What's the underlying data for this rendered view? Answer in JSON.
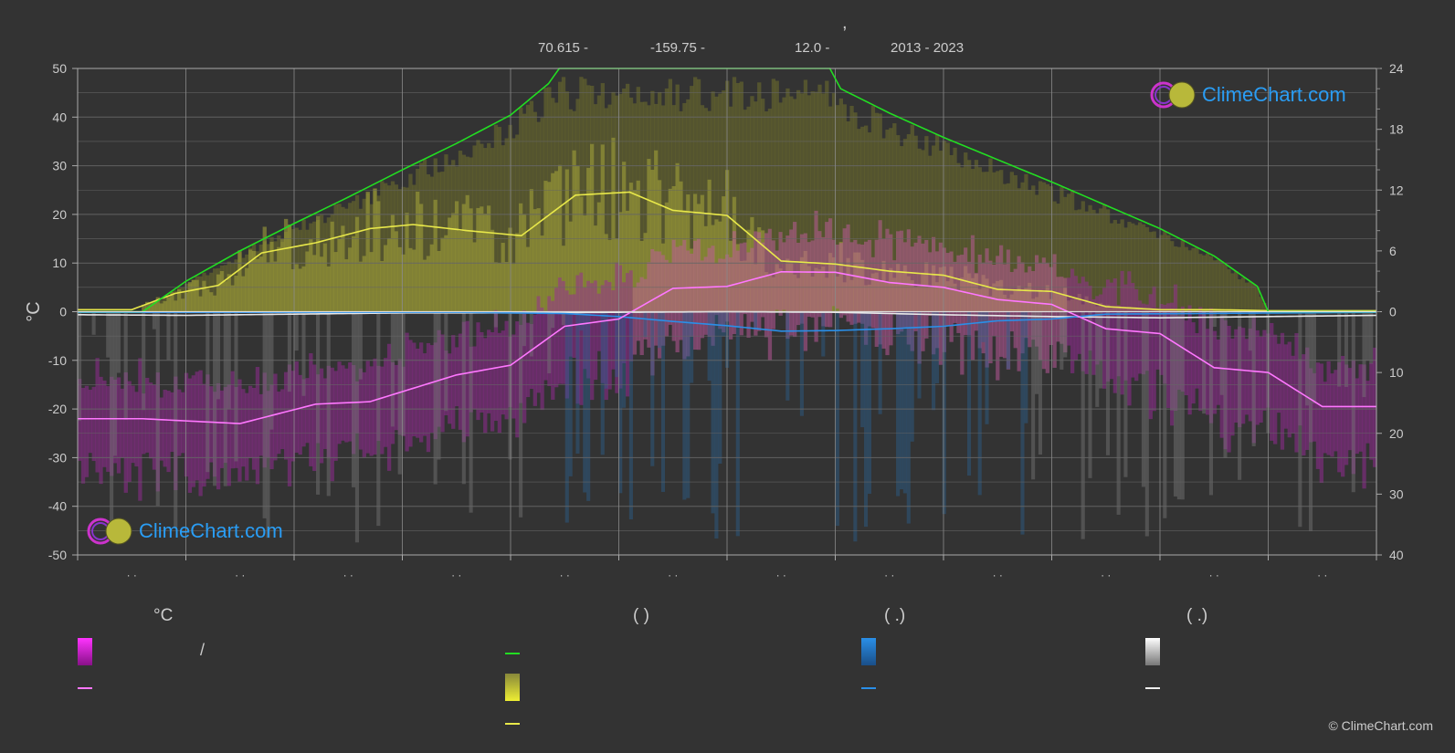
{
  "header": {
    "title_comma": ",",
    "lat": "70.615 -",
    "lon": "-159.75 -",
    "elev": "12.0 -",
    "years": "2013 - 2023"
  },
  "logo_text": "ClimeChart.com",
  "copyright": "© ClimeChart.com",
  "legend": {
    "temp_header": "°C",
    "sun_header": "(          )",
    "rain_header": "(   .)",
    "snow_header": "(   .)",
    "temp_slash": "/"
  },
  "colors": {
    "background": "#333333",
    "daylight": "#22dd22",
    "sunshine": "#e8e84a",
    "temp_mean": "#ff77ff",
    "temp_band": "#e030e0",
    "rain": "#2a8fe8",
    "snow": "#e8e8e8",
    "grid": "#666666",
    "axis_text": "#cccccc"
  },
  "chart_data": {
    "type": "line",
    "left_axis": {
      "label": "°C",
      "min": -50,
      "max": 50,
      "ticks": [
        50,
        40,
        30,
        20,
        10,
        0,
        -10,
        -20,
        -30,
        -40,
        -50
      ]
    },
    "right_axis_top": {
      "min": 0,
      "max": 24,
      "ticks": [
        24,
        18,
        12,
        6,
        0
      ]
    },
    "right_axis_bottom": {
      "min": 0,
      "max": 40,
      "ticks": [
        0,
        10,
        20,
        30,
        40
      ]
    },
    "month_tick_labels": [
      "· ·",
      "· ·",
      "· ·",
      "· ·",
      "· ·",
      "· ·",
      "· ·",
      "· ·",
      "· ·",
      "· ·",
      "· ·",
      "· ·"
    ],
    "x_months": [
      0,
      0.5,
      1,
      1.5,
      2,
      2.5,
      3,
      3.5,
      4,
      4.5,
      5,
      5.5,
      6,
      6.5,
      7,
      7.5,
      8,
      8.5,
      9,
      9.5,
      10,
      10.5,
      11,
      11.5,
      12
    ],
    "series": [
      {
        "key": "daylight_hours",
        "axis": "right_top",
        "x": [
          0,
          0.6,
          1.0,
          1.5,
          2.0,
          2.5,
          3.0,
          3.5,
          4.0,
          4.35,
          4.45,
          6.95,
          7.05,
          7.5,
          8.0,
          8.5,
          9.0,
          9.5,
          10.0,
          10.5,
          10.9,
          11.0,
          12
        ],
        "values": [
          0,
          0,
          3.0,
          6.0,
          8.7,
          11.3,
          14.0,
          16.6,
          19.4,
          22.5,
          24,
          24,
          22.0,
          19.6,
          17.2,
          15.0,
          12.8,
          10.5,
          8.2,
          5.5,
          2.5,
          0,
          0
        ]
      },
      {
        "key": "sunshine_hours",
        "axis": "right_top",
        "x": [
          0,
          0.5,
          0.9,
          1.3,
          1.7,
          2.2,
          2.7,
          3.1,
          3.6,
          4.1,
          4.6,
          5.1,
          5.5,
          6.0,
          6.5,
          7.0,
          7.5,
          8.0,
          8.5,
          9.0,
          9.5,
          10.0,
          10.5,
          11.0,
          11.5,
          12
        ],
        "values": [
          0.2,
          0.2,
          1.8,
          2.6,
          5.8,
          6.8,
          8.2,
          8.6,
          8.0,
          7.5,
          11.5,
          11.8,
          10.0,
          9.5,
          5.0,
          4.7,
          4.0,
          3.6,
          2.2,
          2.0,
          0.5,
          0.2,
          0.2,
          0.1,
          0.1,
          0.1
        ]
      },
      {
        "key": "temp_mean",
        "axis": "left",
        "x": [
          0,
          0.6,
          1.5,
          2.2,
          2.7,
          3.5,
          4.0,
          4.5,
          5.0,
          5.5,
          6.0,
          6.5,
          7.0,
          7.5,
          8.0,
          8.5,
          9.0,
          9.5,
          10.0,
          10.5,
          11.0,
          11.5,
          12
        ],
        "values": [
          -22,
          -22,
          -23,
          -19,
          -18.5,
          -13,
          -11,
          -3,
          -1.5,
          4.8,
          5.2,
          8.2,
          8.1,
          6.0,
          5.0,
          2.5,
          1.5,
          -3.5,
          -4.5,
          -11.5,
          -12.5,
          -19.5,
          -19.5
        ]
      },
      {
        "key": "rain_mm",
        "axis": "right_bottom",
        "x": [
          0,
          3.5,
          4.5,
          5.0,
          5.5,
          6.0,
          6.5,
          7.0,
          7.5,
          8.0,
          8.5,
          9.0,
          9.5,
          12
        ],
        "values": [
          0.1,
          0.1,
          0.3,
          0.8,
          1.6,
          2.3,
          3.2,
          3.1,
          2.8,
          2.4,
          1.5,
          1.2,
          0.4,
          0.1
        ]
      },
      {
        "key": "snow_mm",
        "axis": "right_bottom",
        "x": [
          0,
          1.0,
          2.0,
          3.0,
          4.0,
          5.0,
          6.0,
          7.0,
          8.0,
          9.0,
          10.0,
          11.0,
          12
        ],
        "values": [
          0.5,
          0.6,
          0.4,
          0.2,
          0.2,
          0.1,
          0.0,
          0.1,
          0.5,
          0.8,
          1.0,
          0.8,
          0.6
        ]
      }
    ]
  }
}
